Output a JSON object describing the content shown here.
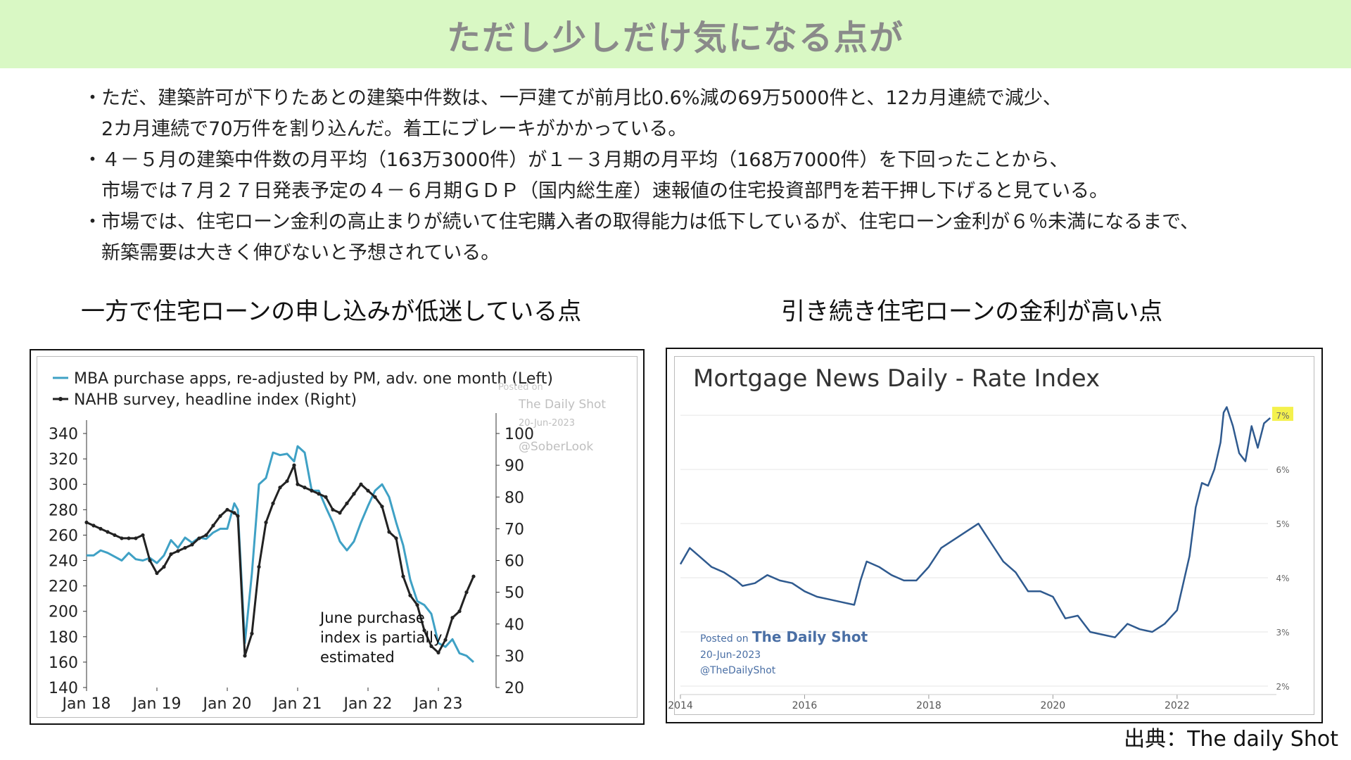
{
  "header": {
    "title": "ただし少しだけ気になる点が"
  },
  "bullets": [
    [
      "ただ、建築許可が下りたあとの建築中件数は、一戸建てが前月比0.6%減の69万5000件と、12カ月連続で減少、",
      "2カ月連続で70万件を割り込んだ。着工にブレーキがかかっている。"
    ],
    [
      "４－５月の建築中件数の月平均（163万3000件）が１－３月期の月平均（168万7000件）を下回ったことから、",
      "市場では７月２７日発表予定の４－６月期ＧＤＰ（国内総生産）速報値の住宅投資部門を若干押し下げると見ている。"
    ],
    [
      "市場では、住宅ローン金利の高止まりが続いて住宅購入者の取得能力は低下しているが、住宅ローン金利が６％未満になるまで、",
      "新築需要は大きく伸びないと予想されている。"
    ]
  ],
  "sections": {
    "left_title": "一方で住宅ローンの申し込みが低迷している点",
    "right_title": "引き続き住宅ローンの金利が高い点"
  },
  "source": "出典：The daily Shot",
  "colors": {
    "header_bg": "#d9f8c4",
    "mba": "#3fa1c5",
    "nahb": "#222222",
    "rate": "#2f5a8f",
    "highlight": "#f4f14d"
  },
  "chart_data": [
    {
      "type": "line",
      "legend": [
        "MBA purchase apps, re-adjusted by PM, adv. one month (Left)",
        "NAHB survey, headline index (Right)"
      ],
      "legend_position": "top-left",
      "x_tick_labels": [
        "Jan 18",
        "Jan 19",
        "Jan 20",
        "Jan 21",
        "Jan 22",
        "Jan 23"
      ],
      "x_range": [
        2018.0,
        2023.7
      ],
      "y_left": {
        "ticks": [
          140,
          160,
          180,
          200,
          220,
          240,
          260,
          280,
          300,
          320,
          340
        ],
        "range": [
          140,
          345
        ]
      },
      "y_right": {
        "ticks": [
          20,
          30,
          40,
          50,
          60,
          70,
          80,
          90,
          100
        ],
        "range": [
          20,
          102
        ]
      },
      "watermark": [
        "Posted on",
        "The Daily Shot",
        "20-Jun-2023",
        "@SoberLook"
      ],
      "annotation": [
        "June purchase",
        "index is partially",
        "estimated"
      ],
      "series": [
        {
          "name": "MBA purchase apps, re-adjusted by PM, adv. one month (Left)",
          "axis": "left",
          "x": [
            2018.0,
            2018.1,
            2018.2,
            2018.3,
            2018.4,
            2018.5,
            2018.6,
            2018.7,
            2018.8,
            2018.9,
            2019.0,
            2019.1,
            2019.2,
            2019.3,
            2019.4,
            2019.5,
            2019.6,
            2019.7,
            2019.8,
            2019.9,
            2020.0,
            2020.1,
            2020.15,
            2020.25,
            2020.35,
            2020.45,
            2020.55,
            2020.65,
            2020.75,
            2020.85,
            2020.95,
            2021.0,
            2021.1,
            2021.2,
            2021.3,
            2021.4,
            2021.5,
            2021.6,
            2021.7,
            2021.8,
            2021.9,
            2022.0,
            2022.1,
            2022.2,
            2022.3,
            2022.4,
            2022.5,
            2022.6,
            2022.7,
            2022.8,
            2022.9,
            2023.0,
            2023.1,
            2023.2,
            2023.3,
            2023.4,
            2023.5
          ],
          "y": [
            244,
            244,
            248,
            246,
            243,
            240,
            246,
            241,
            240,
            242,
            238,
            244,
            256,
            250,
            258,
            254,
            258,
            257,
            262,
            265,
            265,
            285,
            280,
            175,
            230,
            300,
            305,
            325,
            323,
            324,
            318,
            330,
            325,
            295,
            295,
            282,
            270,
            255,
            248,
            255,
            270,
            283,
            295,
            300,
            290,
            270,
            252,
            225,
            208,
            205,
            198,
            175,
            172,
            178,
            167,
            165,
            160
          ]
        },
        {
          "name": "NAHB survey, headline index (Right)",
          "axis": "right",
          "x": [
            2018.0,
            2018.1,
            2018.2,
            2018.3,
            2018.4,
            2018.5,
            2018.6,
            2018.7,
            2018.8,
            2018.9,
            2019.0,
            2019.1,
            2019.2,
            2019.3,
            2019.4,
            2019.5,
            2019.6,
            2019.7,
            2019.8,
            2019.9,
            2020.0,
            2020.1,
            2020.15,
            2020.25,
            2020.35,
            2020.45,
            2020.55,
            2020.65,
            2020.75,
            2020.85,
            2020.95,
            2021.0,
            2021.1,
            2021.2,
            2021.3,
            2021.4,
            2021.5,
            2021.6,
            2021.7,
            2021.8,
            2021.9,
            2022.0,
            2022.1,
            2022.2,
            2022.3,
            2022.4,
            2022.5,
            2022.6,
            2022.7,
            2022.8,
            2022.9,
            2023.0,
            2023.1,
            2023.2,
            2023.3,
            2023.4,
            2023.5
          ],
          "y": [
            72,
            71,
            70,
            69,
            68,
            67,
            67,
            67,
            68,
            60,
            56,
            58,
            62,
            63,
            64,
            65,
            67,
            68,
            71,
            74,
            76,
            75,
            74,
            30,
            37,
            58,
            72,
            78,
            83,
            85,
            90,
            84,
            83,
            82,
            81,
            80,
            76,
            75,
            78,
            81,
            84,
            82,
            80,
            77,
            69,
            67,
            55,
            49,
            46,
            38,
            33,
            31,
            35,
            42,
            44,
            50,
            55
          ]
        }
      ]
    },
    {
      "type": "line",
      "title": "Mortgage News Daily - Rate Index",
      "x_tick_labels": [
        "2014",
        "2016",
        "2018",
        "2020",
        "2022"
      ],
      "x_range": [
        2014.0,
        2023.6
      ],
      "y_tick_labels": [
        "2%",
        "3%",
        "4%",
        "5%",
        "6%",
        "7%"
      ],
      "y_range": [
        2.0,
        7.3
      ],
      "highlighted_label": "7%",
      "watermark": [
        "Posted on",
        "The Daily Shot",
        "20-Jun-2023",
        "@TheDailyShot"
      ],
      "series": [
        {
          "name": "Rate Index",
          "x": [
            2014.0,
            2014.15,
            2014.3,
            2014.5,
            2014.7,
            2014.9,
            2015.0,
            2015.2,
            2015.4,
            2015.6,
            2015.8,
            2016.0,
            2016.2,
            2016.4,
            2016.6,
            2016.8,
            2016.9,
            2017.0,
            2017.2,
            2017.4,
            2017.6,
            2017.8,
            2018.0,
            2018.2,
            2018.4,
            2018.6,
            2018.8,
            2019.0,
            2019.2,
            2019.4,
            2019.6,
            2019.8,
            2020.0,
            2020.2,
            2020.4,
            2020.6,
            2020.8,
            2021.0,
            2021.2,
            2021.4,
            2021.6,
            2021.8,
            2022.0,
            2022.1,
            2022.2,
            2022.3,
            2022.4,
            2022.5,
            2022.6,
            2022.7,
            2022.75,
            2022.8,
            2022.9,
            2023.0,
            2023.1,
            2023.2,
            2023.3,
            2023.4,
            2023.5
          ],
          "y": [
            4.25,
            4.55,
            4.4,
            4.2,
            4.1,
            3.95,
            3.85,
            3.9,
            4.05,
            3.95,
            3.9,
            3.75,
            3.65,
            3.6,
            3.55,
            3.5,
            3.95,
            4.3,
            4.2,
            4.05,
            3.95,
            3.95,
            4.2,
            4.55,
            4.7,
            4.85,
            5.0,
            4.65,
            4.3,
            4.1,
            3.75,
            3.75,
            3.65,
            3.25,
            3.3,
            3.0,
            2.95,
            2.9,
            3.15,
            3.05,
            3.0,
            3.15,
            3.4,
            3.9,
            4.4,
            5.3,
            5.75,
            5.7,
            6.0,
            6.5,
            7.05,
            7.15,
            6.8,
            6.3,
            6.15,
            6.8,
            6.4,
            6.85,
            6.95
          ]
        }
      ]
    }
  ]
}
